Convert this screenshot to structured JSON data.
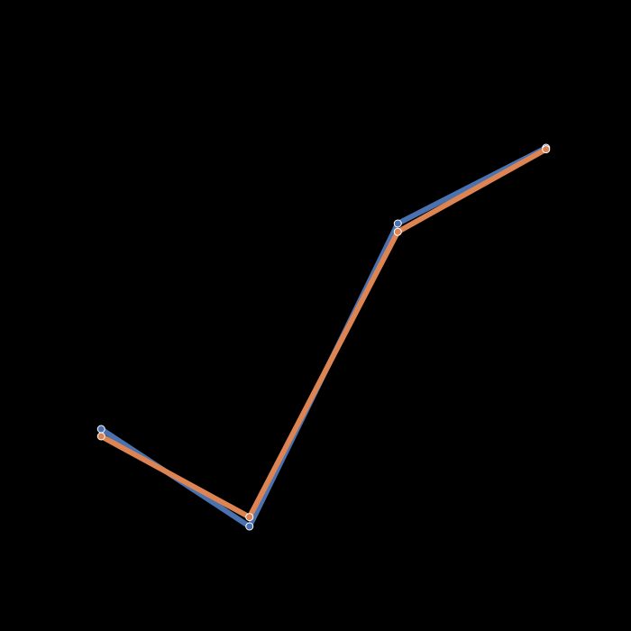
{
  "chart_data": {
    "type": "line",
    "title": "",
    "xlabel": "",
    "ylabel": "",
    "x": [
      0,
      1,
      2,
      3
    ],
    "xlim": [
      -0.5,
      3.5
    ],
    "ylim": [
      0,
      100
    ],
    "grid": false,
    "legend": "none",
    "series": [
      {
        "color": "#4a72b0",
        "values": [
          31,
          4,
          88,
          109
        ]
      },
      {
        "color": "#dd8452",
        "values": [
          29,
          6.6,
          85.7,
          108.6
        ]
      }
    ]
  }
}
